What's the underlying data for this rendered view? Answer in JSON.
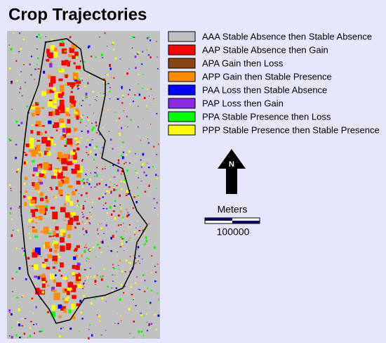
{
  "title": "Crop Trajectories",
  "legend": [
    {
      "label": "AAA Stable Absence then Stable Absence",
      "color": "#c0c0c0"
    },
    {
      "label": "AAP Stable Absence then Gain",
      "color": "#ff0000"
    },
    {
      "label": "APA Gain then Loss",
      "color": "#8b4513"
    },
    {
      "label": "APP Gain then Stable Presence",
      "color": "#ff8c00"
    },
    {
      "label": "PAA Loss then Stable Absence",
      "color": "#0000ff"
    },
    {
      "label": "PAP Loss then Gain",
      "color": "#8a2be2"
    },
    {
      "label": "PPA Stable Presence then Loss",
      "color": "#00ff00"
    },
    {
      "label": "PPP Stable Presence then Stable Presence",
      "color": "#ffff00"
    }
  ],
  "north_label": "N",
  "scale": {
    "unit": "Meters",
    "distance": 100000
  }
}
